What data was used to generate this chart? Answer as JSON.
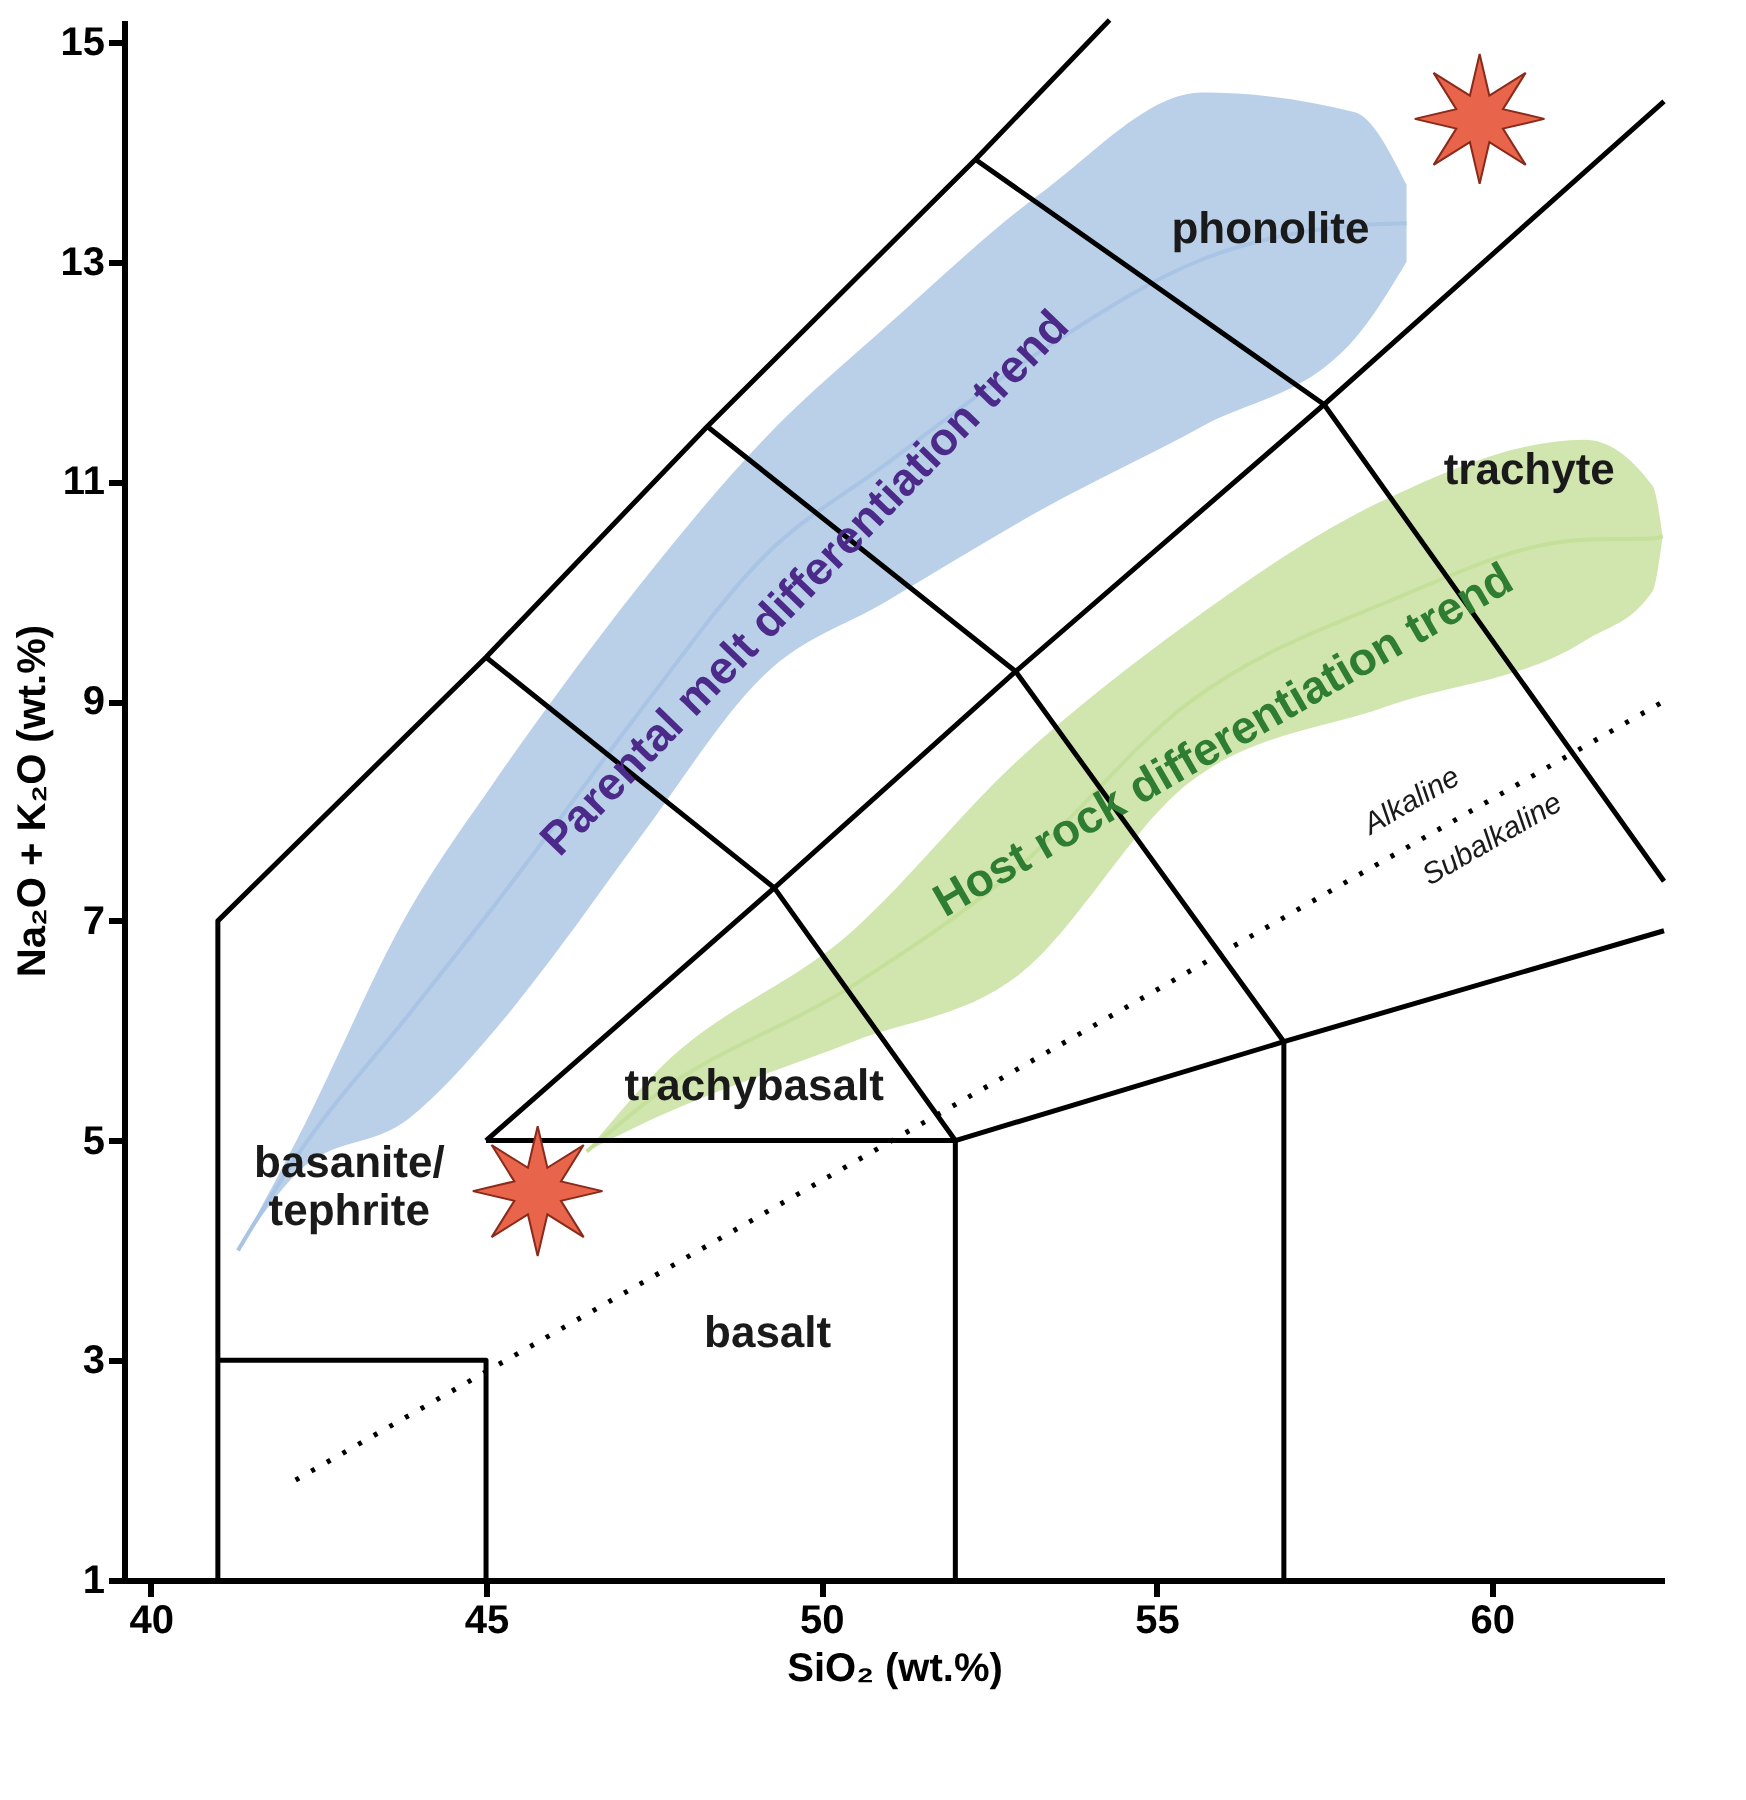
{
  "chart_data": {
    "type": "line",
    "xlabel": "SiO₂ (wt.%)",
    "ylabel": "Na₂O + K₂O (wt.%)",
    "xlim": [
      39.6,
      62.57
    ],
    "ylim": [
      1,
      15.2
    ],
    "xticks": [
      40,
      45,
      50,
      55,
      60
    ],
    "yticks": [
      1,
      3,
      5,
      7,
      9,
      11,
      13,
      15
    ],
    "grid": false,
    "series": [
      {
        "color": "#a9c4e4",
        "x": [
          41.3,
          42.19,
          43.85,
          45.15,
          46.04,
          47.31,
          49.17,
          50.95,
          53.31,
          55.68,
          57.96,
          58.73
        ],
        "values": [
          4.0,
          4.87,
          6.15,
          7.16,
          7.88,
          8.92,
          10.33,
          11.15,
          12.2,
          13.02,
          13.33,
          13.35
        ],
        "lower": [
          4.0,
          4.71,
          5.2,
          6.02,
          6.71,
          7.77,
          9.25,
          9.9,
          10.75,
          11.5,
          12.3,
          13.0
        ],
        "upper": [
          4.0,
          5.02,
          7.09,
          8.29,
          9.05,
          10.07,
          11.4,
          12.4,
          13.64,
          14.54,
          14.36,
          13.7
        ]
      },
      {
        "color": "#c5e09a",
        "x": [
          46.5,
          47.5,
          50.47,
          52.93,
          55.47,
          58.43,
          61.39,
          62.4,
          62.55
        ],
        "values": [
          4.9,
          5.4,
          6.41,
          7.48,
          8.98,
          9.9,
          10.47,
          10.48,
          10.5
        ],
        "lower": [
          4.9,
          5.2,
          5.9,
          6.5,
          8.25,
          8.95,
          9.55,
          10.0,
          10.5
        ],
        "upper": [
          4.9,
          5.6,
          6.91,
          8.46,
          9.71,
          10.84,
          11.38,
          10.96,
          10.5
        ]
      },
      {
        "type": "line",
        "color": "#000000",
        "x": [
          41,
          41,
          45,
          48.3,
          52.3,
          54.3
        ],
        "values": [
          1,
          7,
          9.4,
          11.5,
          13.93,
          15.2
        ]
      },
      {
        "type": "line",
        "color": "#000000",
        "x": [
          41,
          45,
          45
        ],
        "values": [
          3,
          3,
          1
        ]
      },
      {
        "type": "line",
        "color": "#000000",
        "x": [
          45,
          52,
          52
        ],
        "values": [
          5,
          5,
          1
        ]
      },
      {
        "type": "line",
        "color": "#000000",
        "x": [
          45,
          49.3,
          52.9,
          57.5,
          62.57
        ],
        "values": [
          5,
          7.3,
          9.27,
          11.7,
          14.46
        ]
      },
      {
        "type": "line",
        "color": "#000000",
        "x": [
          45,
          49.3,
          52
        ],
        "values": [
          9.4,
          7.3,
          5
        ]
      },
      {
        "type": "line",
        "color": "#000000",
        "x": [
          48.3,
          52.9,
          56.9
        ],
        "values": [
          11.5,
          9.27,
          5.9
        ]
      },
      {
        "type": "line",
        "color": "#000000",
        "x": [
          52.3,
          57.5,
          62.57
        ],
        "values": [
          13.93,
          11.7,
          7.36
        ]
      },
      {
        "type": "line",
        "color": "#000000",
        "x": [
          52,
          56.9,
          62.57
        ],
        "values": [
          5,
          5.9,
          6.91
        ]
      },
      {
        "type": "line",
        "color": "#000000",
        "x": [
          56.9,
          56.9
        ],
        "values": [
          5.9,
          1
        ]
      },
      {
        "type": "line",
        "color": "#000000",
        "line_style": "dotted",
        "x": [
          42.16,
          62.57
        ],
        "values": [
          1.91,
          9.0
        ]
      },
      {
        "type": "scatter",
        "color": "#e8644a",
        "marker": "star",
        "x": [
          45.77,
          59.82
        ],
        "values": [
          4.54,
          14.3
        ]
      }
    ],
    "annotations": [
      "phonolite",
      "trachyte",
      "trachybasalt",
      "basanite/\ntephrite",
      "basalt",
      "Parental melt differentiation trend",
      "Host rock differentiation trend",
      "Alkaline",
      "Subalkaline"
    ]
  }
}
